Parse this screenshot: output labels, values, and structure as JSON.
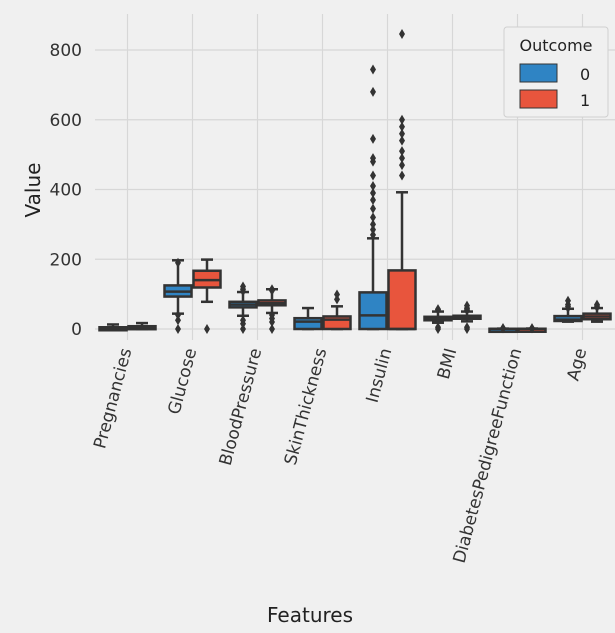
{
  "chart_data": {
    "type": "boxplot",
    "title": "",
    "xlabel": "Features",
    "ylabel": "Value",
    "ylim": [
      -20,
      860
    ],
    "yticks": [
      0,
      200,
      400,
      600,
      800
    ],
    "grid": true,
    "legend": {
      "title": "Outcome",
      "position": "top-right",
      "entries": [
        "0",
        "1"
      ]
    },
    "colors": {
      "0": "#2f84c4",
      "1": "#e8553d",
      "background": "#f0f0f0",
      "grid": "#d7d7d7"
    },
    "categories": [
      "Pregnancies",
      "Glucose",
      "BloodPressure",
      "SkinThickness",
      "Insulin",
      "BMI",
      "DiabetesPedigreeFunction",
      "Age"
    ],
    "series": [
      {
        "name": "0",
        "boxes": [
          {
            "min": 0,
            "q1": 1,
            "median": 2,
            "q3": 5,
            "max": 13,
            "outliers": []
          },
          {
            "min": 44,
            "q1": 93,
            "median": 107,
            "q3": 125,
            "max": 197,
            "outliers": [
              0,
              25,
              40,
              190
            ]
          },
          {
            "min": 38,
            "q1": 62,
            "median": 70,
            "q3": 78,
            "max": 106,
            "outliers": [
              0,
              15,
              25,
              108,
              114,
              122
            ]
          },
          {
            "min": 0,
            "q1": 0,
            "median": 21,
            "q3": 31,
            "max": 60,
            "outliers": []
          },
          {
            "min": 0,
            "q1": 0,
            "median": 39,
            "q3": 105,
            "max": 260,
            "outliers": [
              270,
              285,
              300,
              320,
              345,
              370,
              390,
              410,
              440,
              480,
              490,
              545,
              680,
              744
            ]
          },
          {
            "min": 18,
            "q1": 25,
            "median": 30,
            "q3": 35,
            "max": 50,
            "outliers": [
              0,
              5,
              55,
              57
            ]
          },
          {
            "min": 0.08,
            "q1": 0.23,
            "median": 0.34,
            "q3": 0.56,
            "max": 1.2,
            "outliers": [
              2.3,
              2.4
            ]
          },
          {
            "min": 21,
            "q1": 23,
            "median": 27,
            "q3": 37,
            "max": 58,
            "outliers": [
              60,
              65,
              70,
              81
            ]
          }
        ]
      },
      {
        "name": "1",
        "boxes": [
          {
            "min": 0,
            "q1": 1,
            "median": 4,
            "q3": 8,
            "max": 17,
            "outliers": []
          },
          {
            "min": 78,
            "q1": 119,
            "median": 140,
            "q3": 167,
            "max": 199,
            "outliers": [
              0
            ]
          },
          {
            "min": 46,
            "q1": 68,
            "median": 74,
            "q3": 82,
            "max": 114,
            "outliers": [
              0,
              20,
              30,
              40,
              110,
              114
            ]
          },
          {
            "min": 0,
            "q1": 0,
            "median": 27,
            "q3": 36,
            "max": 65,
            "outliers": [
              85,
              99
            ]
          },
          {
            "min": 0,
            "q1": 0,
            "median": 0,
            "q3": 168,
            "max": 392,
            "outliers": [
              440,
              470,
              490,
              510,
              540,
              560,
              580,
              600,
              846
            ]
          },
          {
            "min": 22,
            "q1": 30,
            "median": 34,
            "q3": 38,
            "max": 50,
            "outliers": [
              0,
              5,
              53,
              57,
              60,
              67
            ]
          },
          {
            "min": 0.09,
            "q1": 0.26,
            "median": 0.45,
            "q3": 0.73,
            "max": 1.4,
            "outliers": [
              2.1,
              2.3
            ]
          },
          {
            "min": 21,
            "q1": 28,
            "median": 36,
            "q3": 44,
            "max": 60,
            "outliers": [
              62,
              66,
              70
            ]
          }
        ]
      }
    ]
  }
}
